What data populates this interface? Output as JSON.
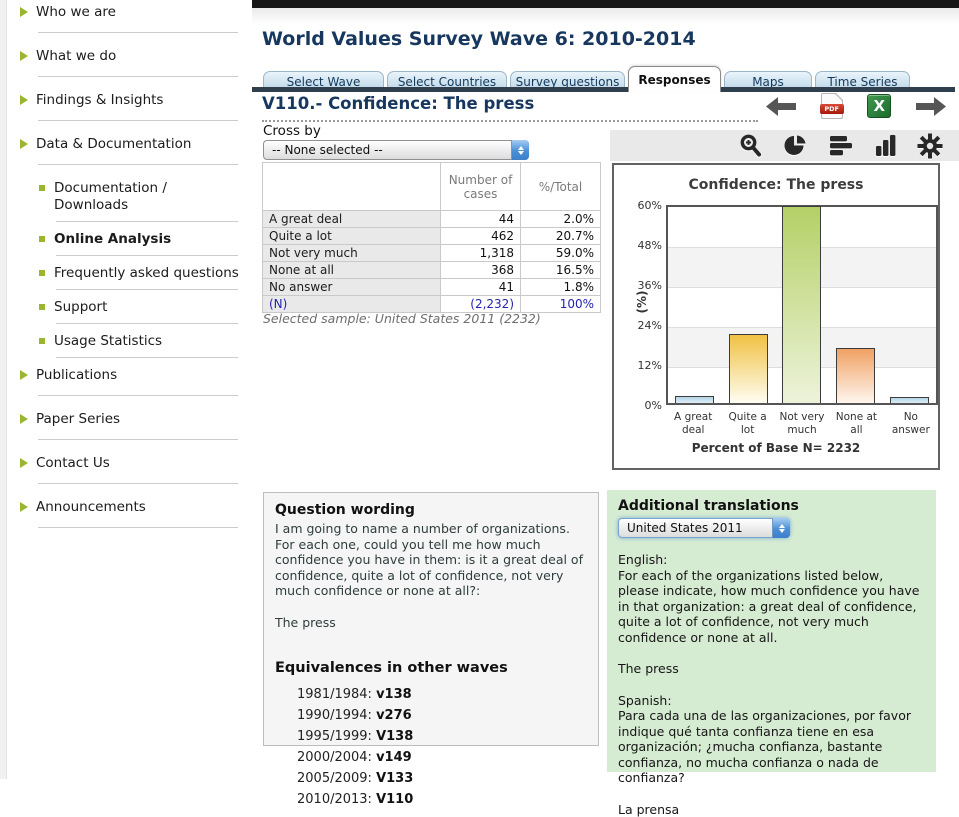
{
  "colors": {
    "accent_navy": "#17375e",
    "sidebar_bullet_green": "#9ab62f",
    "tab_bar": "#303f4e",
    "translation_bg": "#d6ecd2",
    "n_row_blue": "#2424b0"
  },
  "page": {
    "title": "World Values Survey Wave 6: 2010-2014"
  },
  "sidebar": {
    "items": [
      {
        "label": "Who we are"
      },
      {
        "label": "What we do"
      },
      {
        "label": "Findings & Insights"
      },
      {
        "label": "Data & Documentation"
      },
      {
        "label": "Documentation / Downloads"
      },
      {
        "label": "Online Analysis"
      },
      {
        "label": "Frequently asked questions"
      },
      {
        "label": "Support"
      },
      {
        "label": "Usage Statistics"
      },
      {
        "label": "Publications"
      },
      {
        "label": "Paper Series"
      },
      {
        "label": "Contact Us"
      },
      {
        "label": "Announcements"
      }
    ]
  },
  "tabs": {
    "items": [
      {
        "label": "Select Wave"
      },
      {
        "label": "Select Countries"
      },
      {
        "label": "Survey questions"
      },
      {
        "label": "Responses"
      },
      {
        "label": "Maps"
      },
      {
        "label": "Time Series"
      }
    ],
    "active": "Responses"
  },
  "question": {
    "title": "V110.- Confidence: The press"
  },
  "crossby": {
    "label": "Cross by",
    "value": "-- None selected --"
  },
  "table": {
    "headers": [
      "",
      "Number of cases",
      "%/Total"
    ],
    "rows": [
      {
        "label": "A great deal",
        "cases": "44",
        "pct": "2.0%"
      },
      {
        "label": "Quite a lot",
        "cases": "462",
        "pct": "20.7%"
      },
      {
        "label": "Not very much",
        "cases": "1,318",
        "pct": "59.0%"
      },
      {
        "label": "None at all",
        "cases": "368",
        "pct": "16.5%"
      },
      {
        "label": "No answer",
        "cases": "41",
        "pct": "1.8%"
      },
      {
        "label": "(N)",
        "cases": "(2,232)",
        "pct": "100%"
      }
    ],
    "sample_note": "Selected sample: United States 2011 (2232)"
  },
  "chart_data": {
    "type": "bar",
    "title": "Confidence: The press",
    "categories": [
      "A great deal",
      "Quite a lot",
      "Not very much",
      "None at all",
      "No answer"
    ],
    "values": [
      2.0,
      20.7,
      59.0,
      16.5,
      1.8
    ],
    "ylabel": "(%)",
    "xlabel": "Percent of Base N= 2232",
    "ylim": [
      0,
      60
    ],
    "yticks": [
      "60%",
      "48%",
      "36%",
      "24%",
      "12%",
      "0%"
    ],
    "grid": true,
    "legend": "none",
    "bar_colors": [
      "#b5d5e8",
      "#f0c143",
      "#b4d066",
      "#f0a163",
      "#b5d5e8"
    ],
    "bar_fade": [
      "#dcecf5",
      "#fffdf2",
      "#edf3da",
      "#fff6ef",
      "#dcecf5"
    ]
  },
  "question_wording": {
    "heading": "Question wording",
    "body": "I am going to name a number of organizations. For each one, could you tell me how much confidence you have in them: is it a great deal of confidence, quite a lot of confidence, not very much confidence or none at all?:",
    "item": "The press",
    "equivalences_heading": "Equivalences in other waves",
    "equivalences": [
      {
        "wave": "1981/1984:",
        "code": "v138"
      },
      {
        "wave": "1990/1994:",
        "code": "v276"
      },
      {
        "wave": "1995/1999:",
        "code": "V138"
      },
      {
        "wave": "2000/2004:",
        "code": "v149"
      },
      {
        "wave": "2005/2009:",
        "code": "V133"
      },
      {
        "wave": "2010/2013:",
        "code": "V110"
      }
    ]
  },
  "translations": {
    "heading": "Additional translations",
    "selected": "United States 2011",
    "english_label": "English:",
    "english_body": "For each of the organizations listed below, please indicate, how much confidence you have in that organization: a great deal of confidence, quite a lot of confidence, not very much confidence or none at all.",
    "english_item": "The press",
    "spanish_label": "Spanish:",
    "spanish_body": "Para cada una de las organizaciones, por favor indique qué tanta confianza tiene en esa organización; ¿mucha confianza, bastante confianza, no mucha confianza o nada de confianza?",
    "spanish_item": "La prensa"
  }
}
